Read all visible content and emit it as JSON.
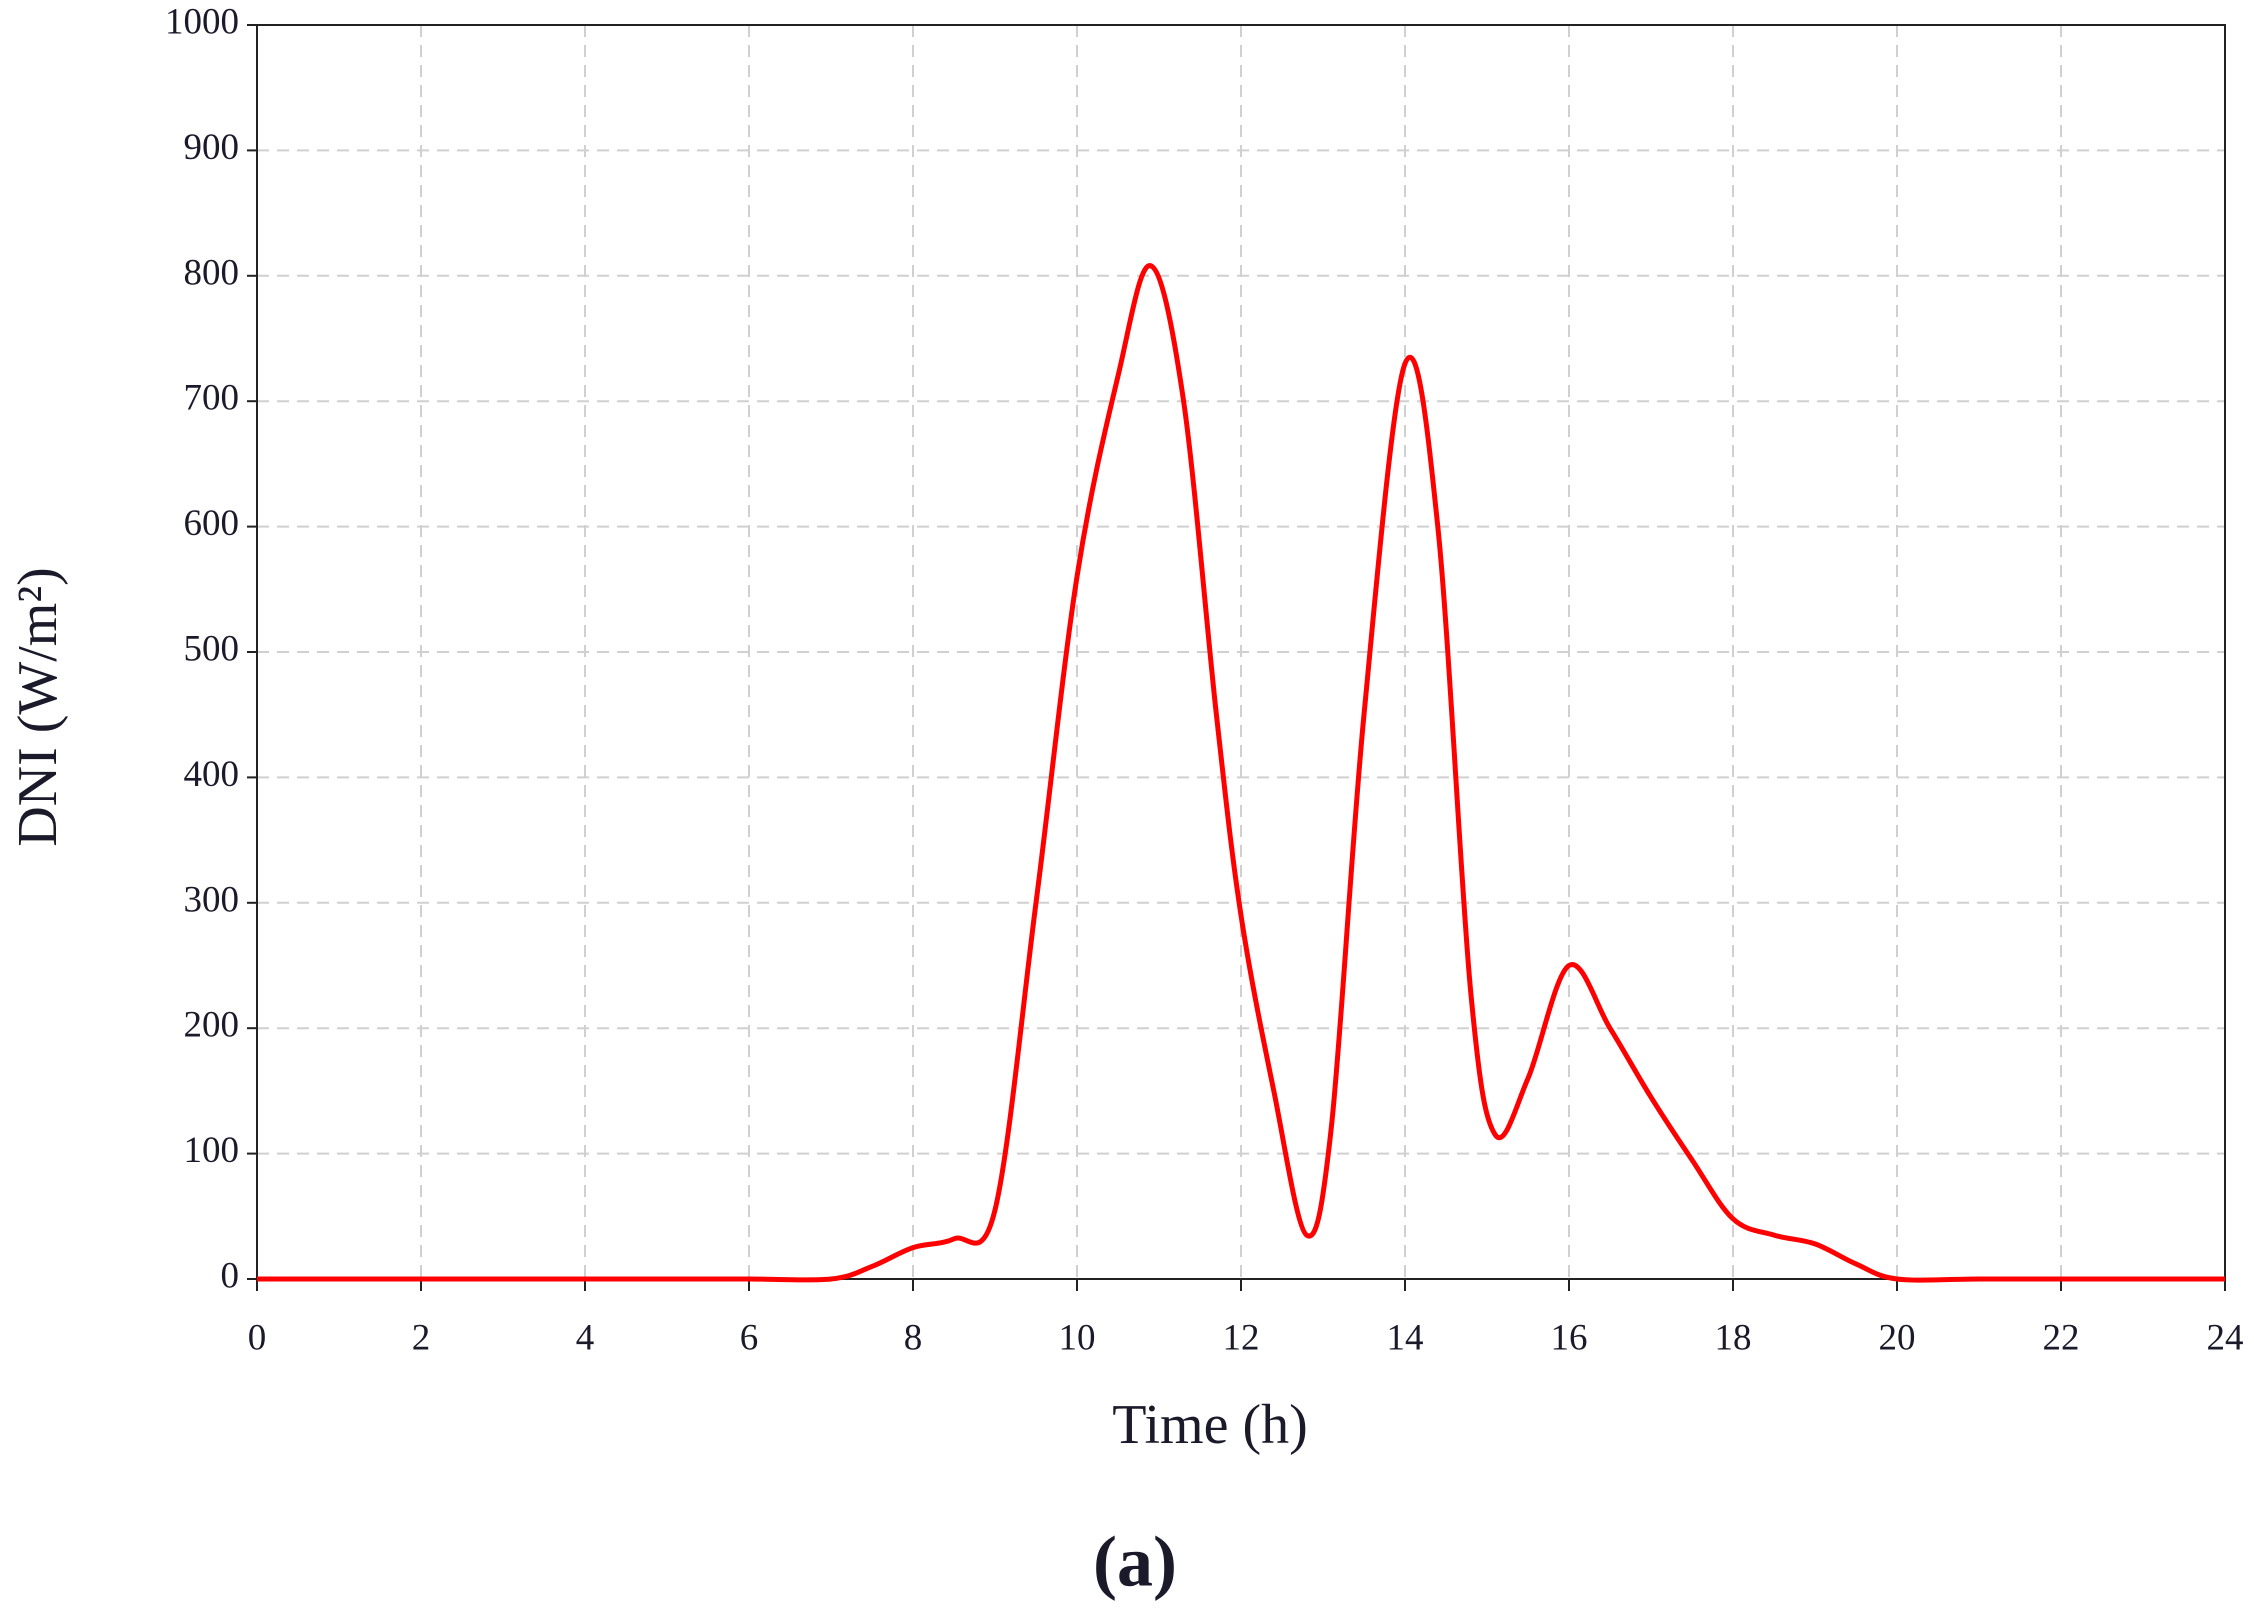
{
  "chart_data": {
    "type": "line",
    "x_label": "Time (h)",
    "y_label": "DNI (W/m²)",
    "caption": "(a)",
    "x": [
      0,
      1,
      2,
      3,
      4,
      5,
      6,
      7,
      7.5,
      8,
      8.5,
      9,
      9.5,
      10,
      10.5,
      10.9,
      11.3,
      11.7,
      12,
      12.4,
      12.8,
      13.1,
      13.5,
      14,
      14.4,
      14.8,
      15.1,
      15.5,
      16,
      16.5,
      17,
      17.5,
      18,
      18.5,
      19,
      19.5,
      20,
      21,
      22,
      23,
      24
    ],
    "series": [
      {
        "name": "DNI",
        "color": "#ff0000",
        "values": [
          0,
          0,
          0,
          0,
          0,
          0,
          0,
          0,
          10,
          25,
          32,
          55,
          300,
          560,
          720,
          808,
          700,
          450,
          290,
          150,
          35,
          120,
          450,
          730,
          600,
          230,
          115,
          160,
          250,
          200,
          145,
          95,
          48,
          35,
          28,
          12,
          0,
          0,
          0,
          0,
          0
        ]
      }
    ],
    "xlim": [
      0,
      24
    ],
    "xticks": [
      0,
      2,
      4,
      6,
      8,
      10,
      12,
      14,
      16,
      18,
      20,
      22,
      24
    ],
    "ylim": [
      0,
      1000
    ],
    "yticks": [
      0,
      100,
      200,
      300,
      400,
      500,
      600,
      700,
      800,
      900,
      1000
    ],
    "grid": true
  }
}
